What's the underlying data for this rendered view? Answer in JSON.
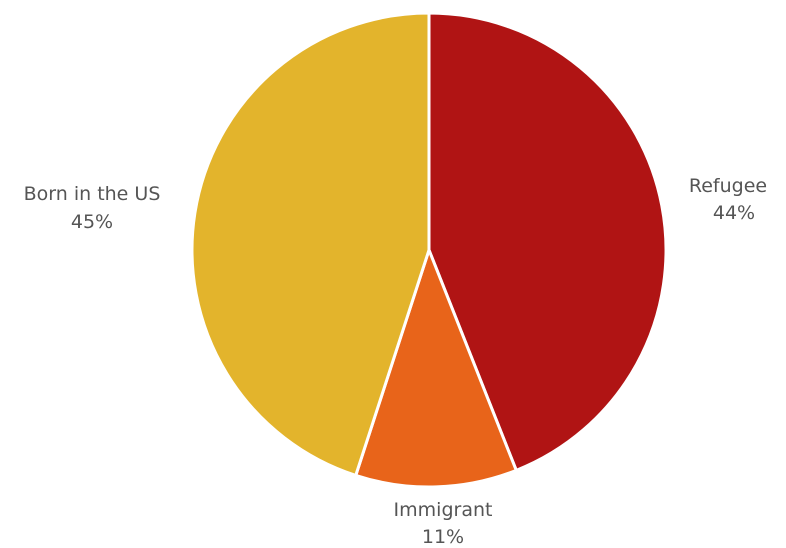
{
  "chart_data": {
    "type": "pie",
    "title": "",
    "categories": [
      "Refugee",
      "Immigrant",
      "Born in the US"
    ],
    "values": [
      44,
      11,
      45
    ],
    "value_labels": [
      "44%",
      "11%",
      "45%"
    ],
    "colors": [
      "#b01414",
      "#e8641a",
      "#e3b42c"
    ],
    "slice_border_color": "#ffffff",
    "start_angle": "12 o'clock",
    "direction": "clockwise",
    "legend": "none",
    "labels_position": "outside"
  }
}
